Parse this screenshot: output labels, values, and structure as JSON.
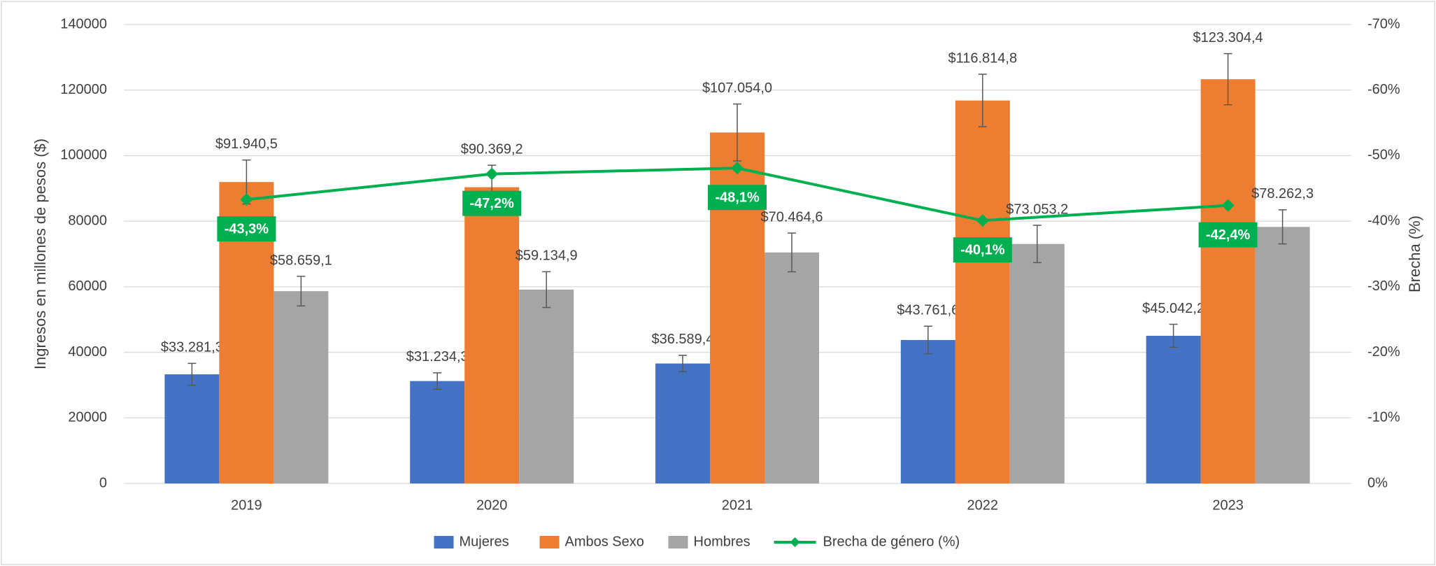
{
  "chart_data": {
    "type": "bar",
    "y_label": "Ingresos en millones de pesos ($)",
    "y2_label": "Brecha (%)",
    "categories": [
      "2019",
      "2020",
      "2021",
      "2022",
      "2023"
    ],
    "series": [
      {
        "name": "Mujeres",
        "color": "#4472c4",
        "values": [
          33281.3,
          31234.3,
          36589.4,
          43761.6,
          45042.2
        ],
        "value_labels": [
          "$33.281,3",
          "$31.234,3",
          "$36.589,4",
          "$43.761,6",
          "$45.042,2"
        ],
        "errors": [
          3350,
          2500,
          2500,
          4200,
          3500
        ]
      },
      {
        "name": "Ambos Sexo",
        "color": "#ed7d31",
        "values": [
          91940.5,
          90369.2,
          107054.0,
          116814.8,
          123304.4
        ],
        "value_labels": [
          "$91.940,5",
          "$90.369,2",
          "$107.054,0",
          "$116.814,8",
          "$123.304,4"
        ],
        "errors": [
          6700,
          6700,
          8700,
          8000,
          7800
        ]
      },
      {
        "name": "Hombres",
        "color": "#a5a5a5",
        "values": [
          58659.1,
          59134.9,
          70464.6,
          73053.2,
          78262.3
        ],
        "value_labels": [
          "$58.659,1",
          "$59.134,9",
          "$70.464,6",
          "$73.053,2",
          "$78.262,3"
        ],
        "errors": [
          4500,
          5450,
          5900,
          5700,
          5200
        ]
      },
      {
        "name": "Brecha de género (%)",
        "type": "line",
        "axis": "y2",
        "color": "#00b050",
        "values": [
          -43.3,
          -47.2,
          -48.1,
          -40.1,
          -42.4
        ],
        "value_labels": [
          "-43,3%",
          "-47,2%",
          "-48,1%",
          "-40,1%",
          "-42,4%"
        ]
      }
    ],
    "ylim": [
      0,
      140000
    ],
    "yticks": [
      0,
      20000,
      40000,
      60000,
      80000,
      100000,
      120000,
      140000
    ],
    "y2lim": [
      0,
      -70
    ],
    "y2ticks": [
      {
        "value": 0,
        "label": "0%"
      },
      {
        "value": -10,
        "label": "-10%"
      },
      {
        "value": -20,
        "label": "-20%"
      },
      {
        "value": -30,
        "label": "-30%"
      },
      {
        "value": -40,
        "label": "-40%"
      },
      {
        "value": -50,
        "label": "-50%"
      },
      {
        "value": -60,
        "label": "-60%"
      },
      {
        "value": -70,
        "label": "-70%"
      }
    ],
    "grid": true,
    "legend": "bottom"
  }
}
